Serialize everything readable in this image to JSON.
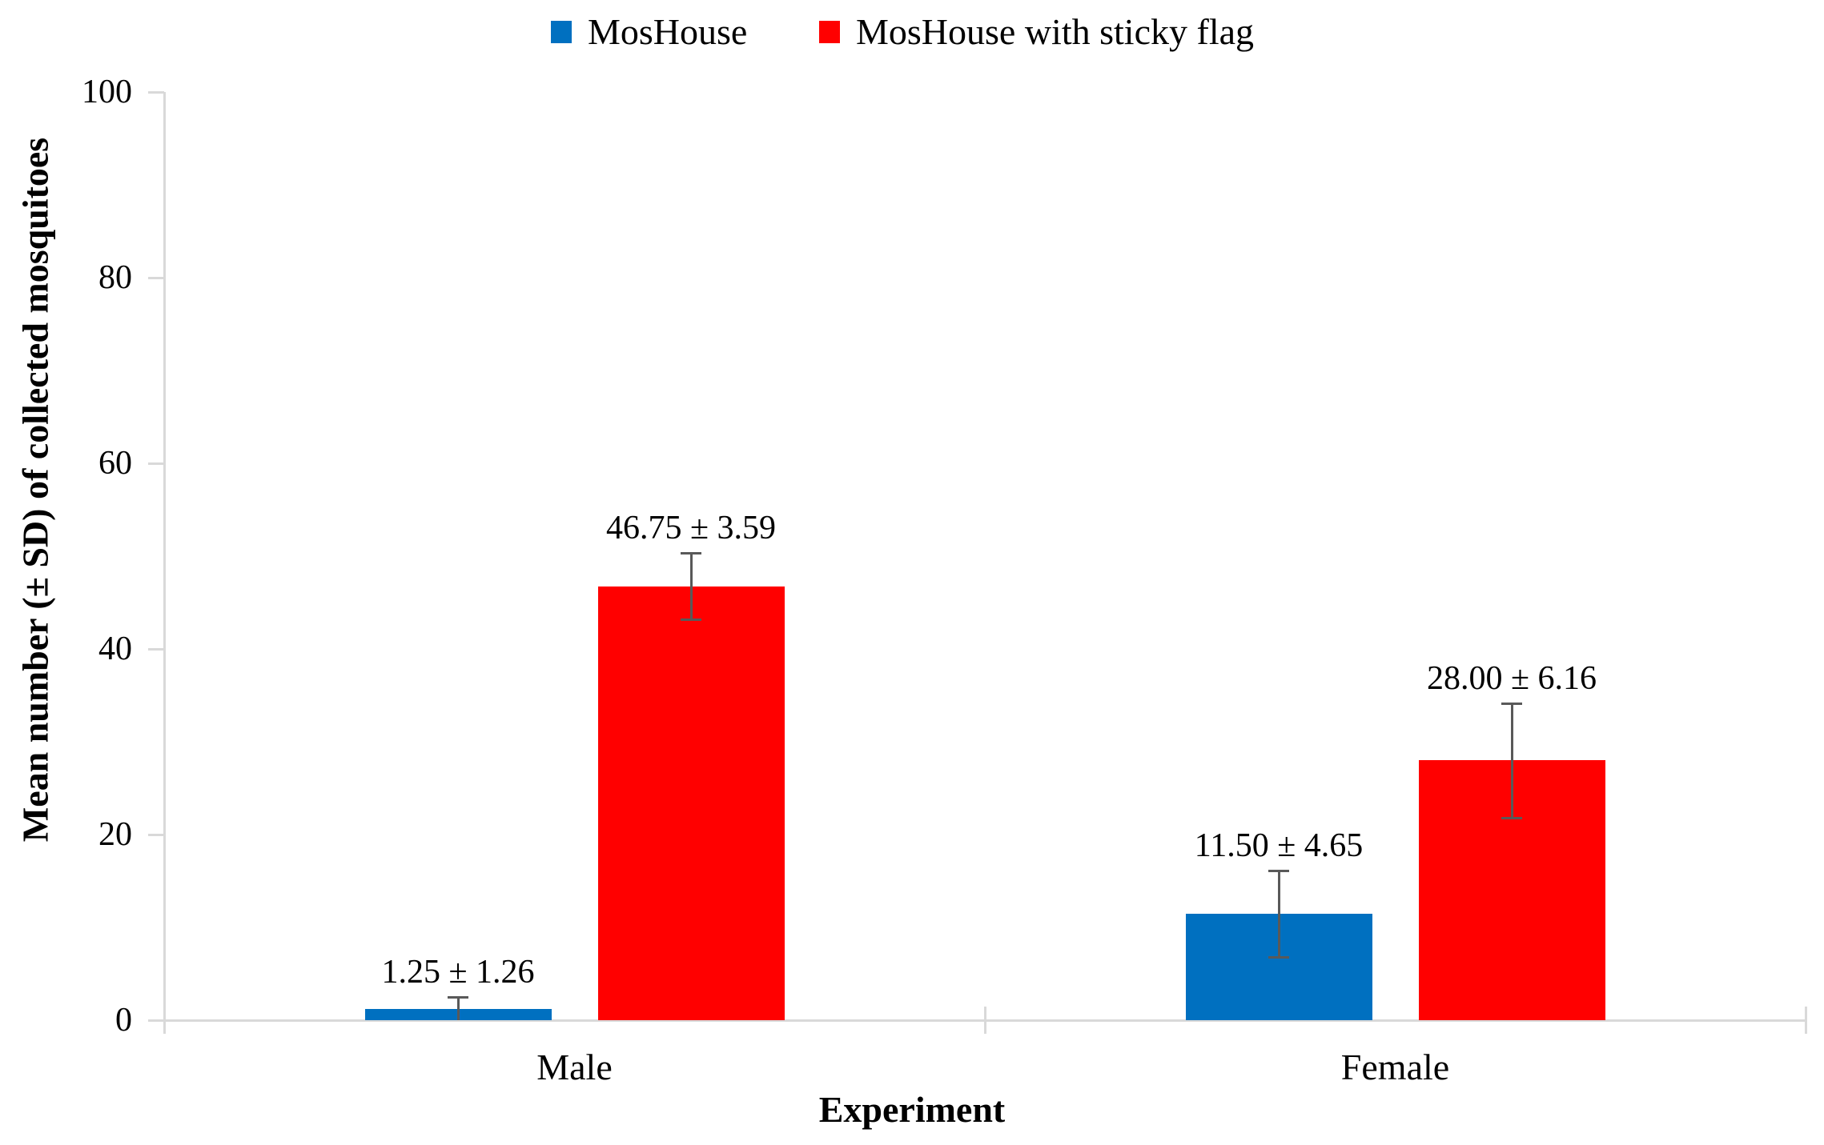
{
  "chart_data": {
    "type": "bar",
    "title": "",
    "categories": [
      "Male",
      "Female"
    ],
    "series": [
      {
        "name": "MosHouse",
        "color": "#0070C0",
        "values": [
          1.25,
          11.5
        ],
        "sd": [
          1.26,
          4.65
        ],
        "labels": [
          "1.25 ± 1.26",
          "11.50 ± 4.65"
        ]
      },
      {
        "name": "MosHouse with sticky flag",
        "color": "#FF0000",
        "values": [
          46.75,
          28.0
        ],
        "sd": [
          3.59,
          6.16
        ],
        "labels": [
          "46.75 ± 3.59",
          "28.00 ± 6.16"
        ]
      }
    ],
    "xlabel": "Experiment",
    "ylabel": "Mean number (± SD) of collected mosquitoes",
    "ylim": [
      0,
      100
    ],
    "yticks": [
      0,
      20,
      40,
      60,
      80,
      100
    ],
    "ytick_labels": [
      "0",
      "20",
      "40",
      "60",
      "80",
      "100"
    ],
    "legend_position": "top",
    "grid": false,
    "colors": {
      "axis": "#D9D9D9",
      "error_bar": "#595959",
      "text": "#000000",
      "background": "#FFFFFF"
    }
  }
}
